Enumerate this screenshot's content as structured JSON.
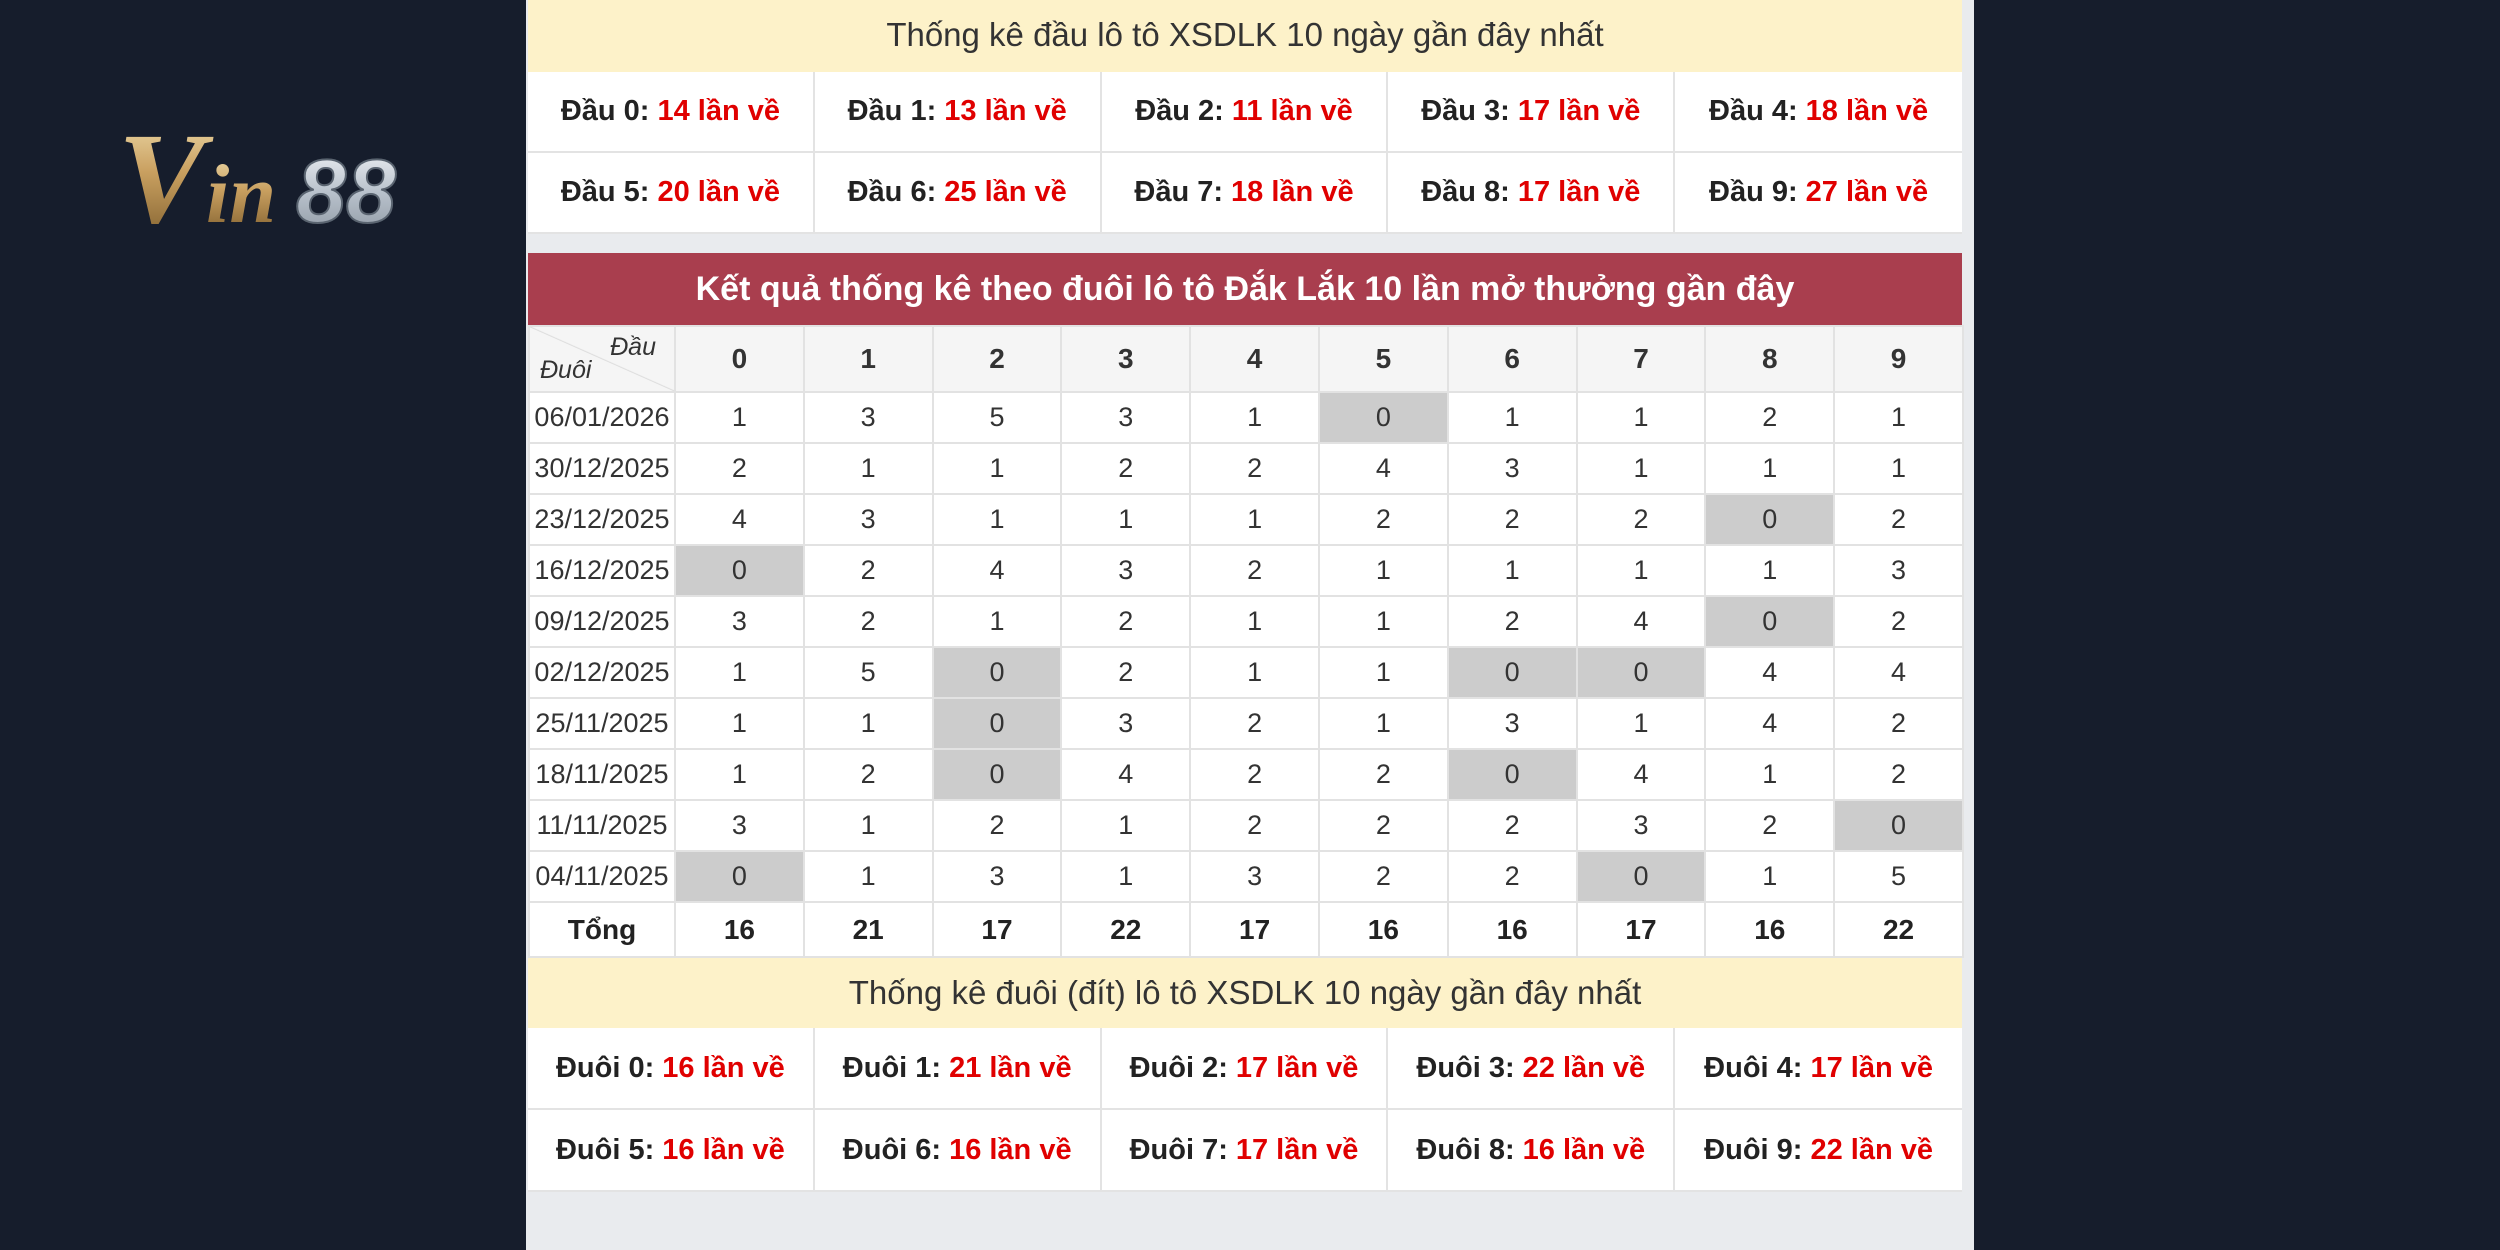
{
  "logo": {
    "text": "Vin88"
  },
  "head_stats": {
    "title": "Thống kê đầu lô tô XSDLK 10 ngày gần đây nhất",
    "items": [
      {
        "label": "Đầu 0:",
        "value": "14 lần về"
      },
      {
        "label": "Đầu 1:",
        "value": "13 lần về"
      },
      {
        "label": "Đầu 2:",
        "value": "11 lần về"
      },
      {
        "label": "Đầu 3:",
        "value": "17 lần về"
      },
      {
        "label": "Đầu 4:",
        "value": "18 lần về"
      },
      {
        "label": "Đầu 5:",
        "value": "20 lần về"
      },
      {
        "label": "Đầu 6:",
        "value": "25 lần về"
      },
      {
        "label": "Đầu 7:",
        "value": "18 lần về"
      },
      {
        "label": "Đầu 8:",
        "value": "17 lần về"
      },
      {
        "label": "Đầu 9:",
        "value": "27 lần về"
      }
    ]
  },
  "table": {
    "title": "Kết quả thống kê theo đuôi lô tô Đắk Lắk 10 lần mở thưởng gần đây",
    "corner_top": "Đầu",
    "corner_bottom": "Đuôi",
    "columns": [
      "0",
      "1",
      "2",
      "3",
      "4",
      "5",
      "6",
      "7",
      "8",
      "9"
    ],
    "rows": [
      {
        "date": "06/01/2026",
        "values": [
          1,
          3,
          5,
          3,
          1,
          0,
          1,
          1,
          2,
          1
        ]
      },
      {
        "date": "30/12/2025",
        "values": [
          2,
          1,
          1,
          2,
          2,
          4,
          3,
          1,
          1,
          1
        ]
      },
      {
        "date": "23/12/2025",
        "values": [
          4,
          3,
          1,
          1,
          1,
          2,
          2,
          2,
          0,
          2
        ]
      },
      {
        "date": "16/12/2025",
        "values": [
          0,
          2,
          4,
          3,
          2,
          1,
          1,
          1,
          1,
          3
        ]
      },
      {
        "date": "09/12/2025",
        "values": [
          3,
          2,
          1,
          2,
          1,
          1,
          2,
          4,
          0,
          2
        ]
      },
      {
        "date": "02/12/2025",
        "values": [
          1,
          5,
          0,
          2,
          1,
          1,
          0,
          0,
          4,
          4
        ]
      },
      {
        "date": "25/11/2025",
        "values": [
          1,
          1,
          0,
          3,
          2,
          1,
          3,
          1,
          4,
          2
        ]
      },
      {
        "date": "18/11/2025",
        "values": [
          1,
          2,
          0,
          4,
          2,
          2,
          0,
          4,
          1,
          2
        ]
      },
      {
        "date": "11/11/2025",
        "values": [
          3,
          1,
          2,
          1,
          2,
          2,
          2,
          3,
          2,
          0
        ]
      },
      {
        "date": "04/11/2025",
        "values": [
          0,
          1,
          3,
          1,
          3,
          2,
          2,
          0,
          1,
          5
        ]
      }
    ],
    "total_label": "Tổng",
    "totals": [
      16,
      21,
      17,
      22,
      17,
      16,
      16,
      17,
      16,
      22
    ]
  },
  "tail_stats": {
    "title": "Thống kê đuôi (đít) lô tô XSDLK 10 ngày gần đây nhất",
    "items": [
      {
        "label": "Đuôi 0:",
        "value": "16 lần về"
      },
      {
        "label": "Đuôi 1:",
        "value": "21 lần về"
      },
      {
        "label": "Đuôi 2:",
        "value": "17 lần về"
      },
      {
        "label": "Đuôi 3:",
        "value": "22 lần về"
      },
      {
        "label": "Đuôi 4:",
        "value": "17 lần về"
      },
      {
        "label": "Đuôi 5:",
        "value": "16 lần về"
      },
      {
        "label": "Đuôi 6:",
        "value": "16 lần về"
      },
      {
        "label": "Đuôi 7:",
        "value": "17 lần về"
      },
      {
        "label": "Đuôi 8:",
        "value": "16 lần về"
      },
      {
        "label": "Đuôi 9:",
        "value": "22 lần về"
      }
    ]
  },
  "colors": {
    "background": "#161d2c",
    "header_red": "#a93e4e",
    "strip_yellow": "#fdf2c9",
    "value_red": "#e00000",
    "zero_cell": "#cccccc"
  }
}
